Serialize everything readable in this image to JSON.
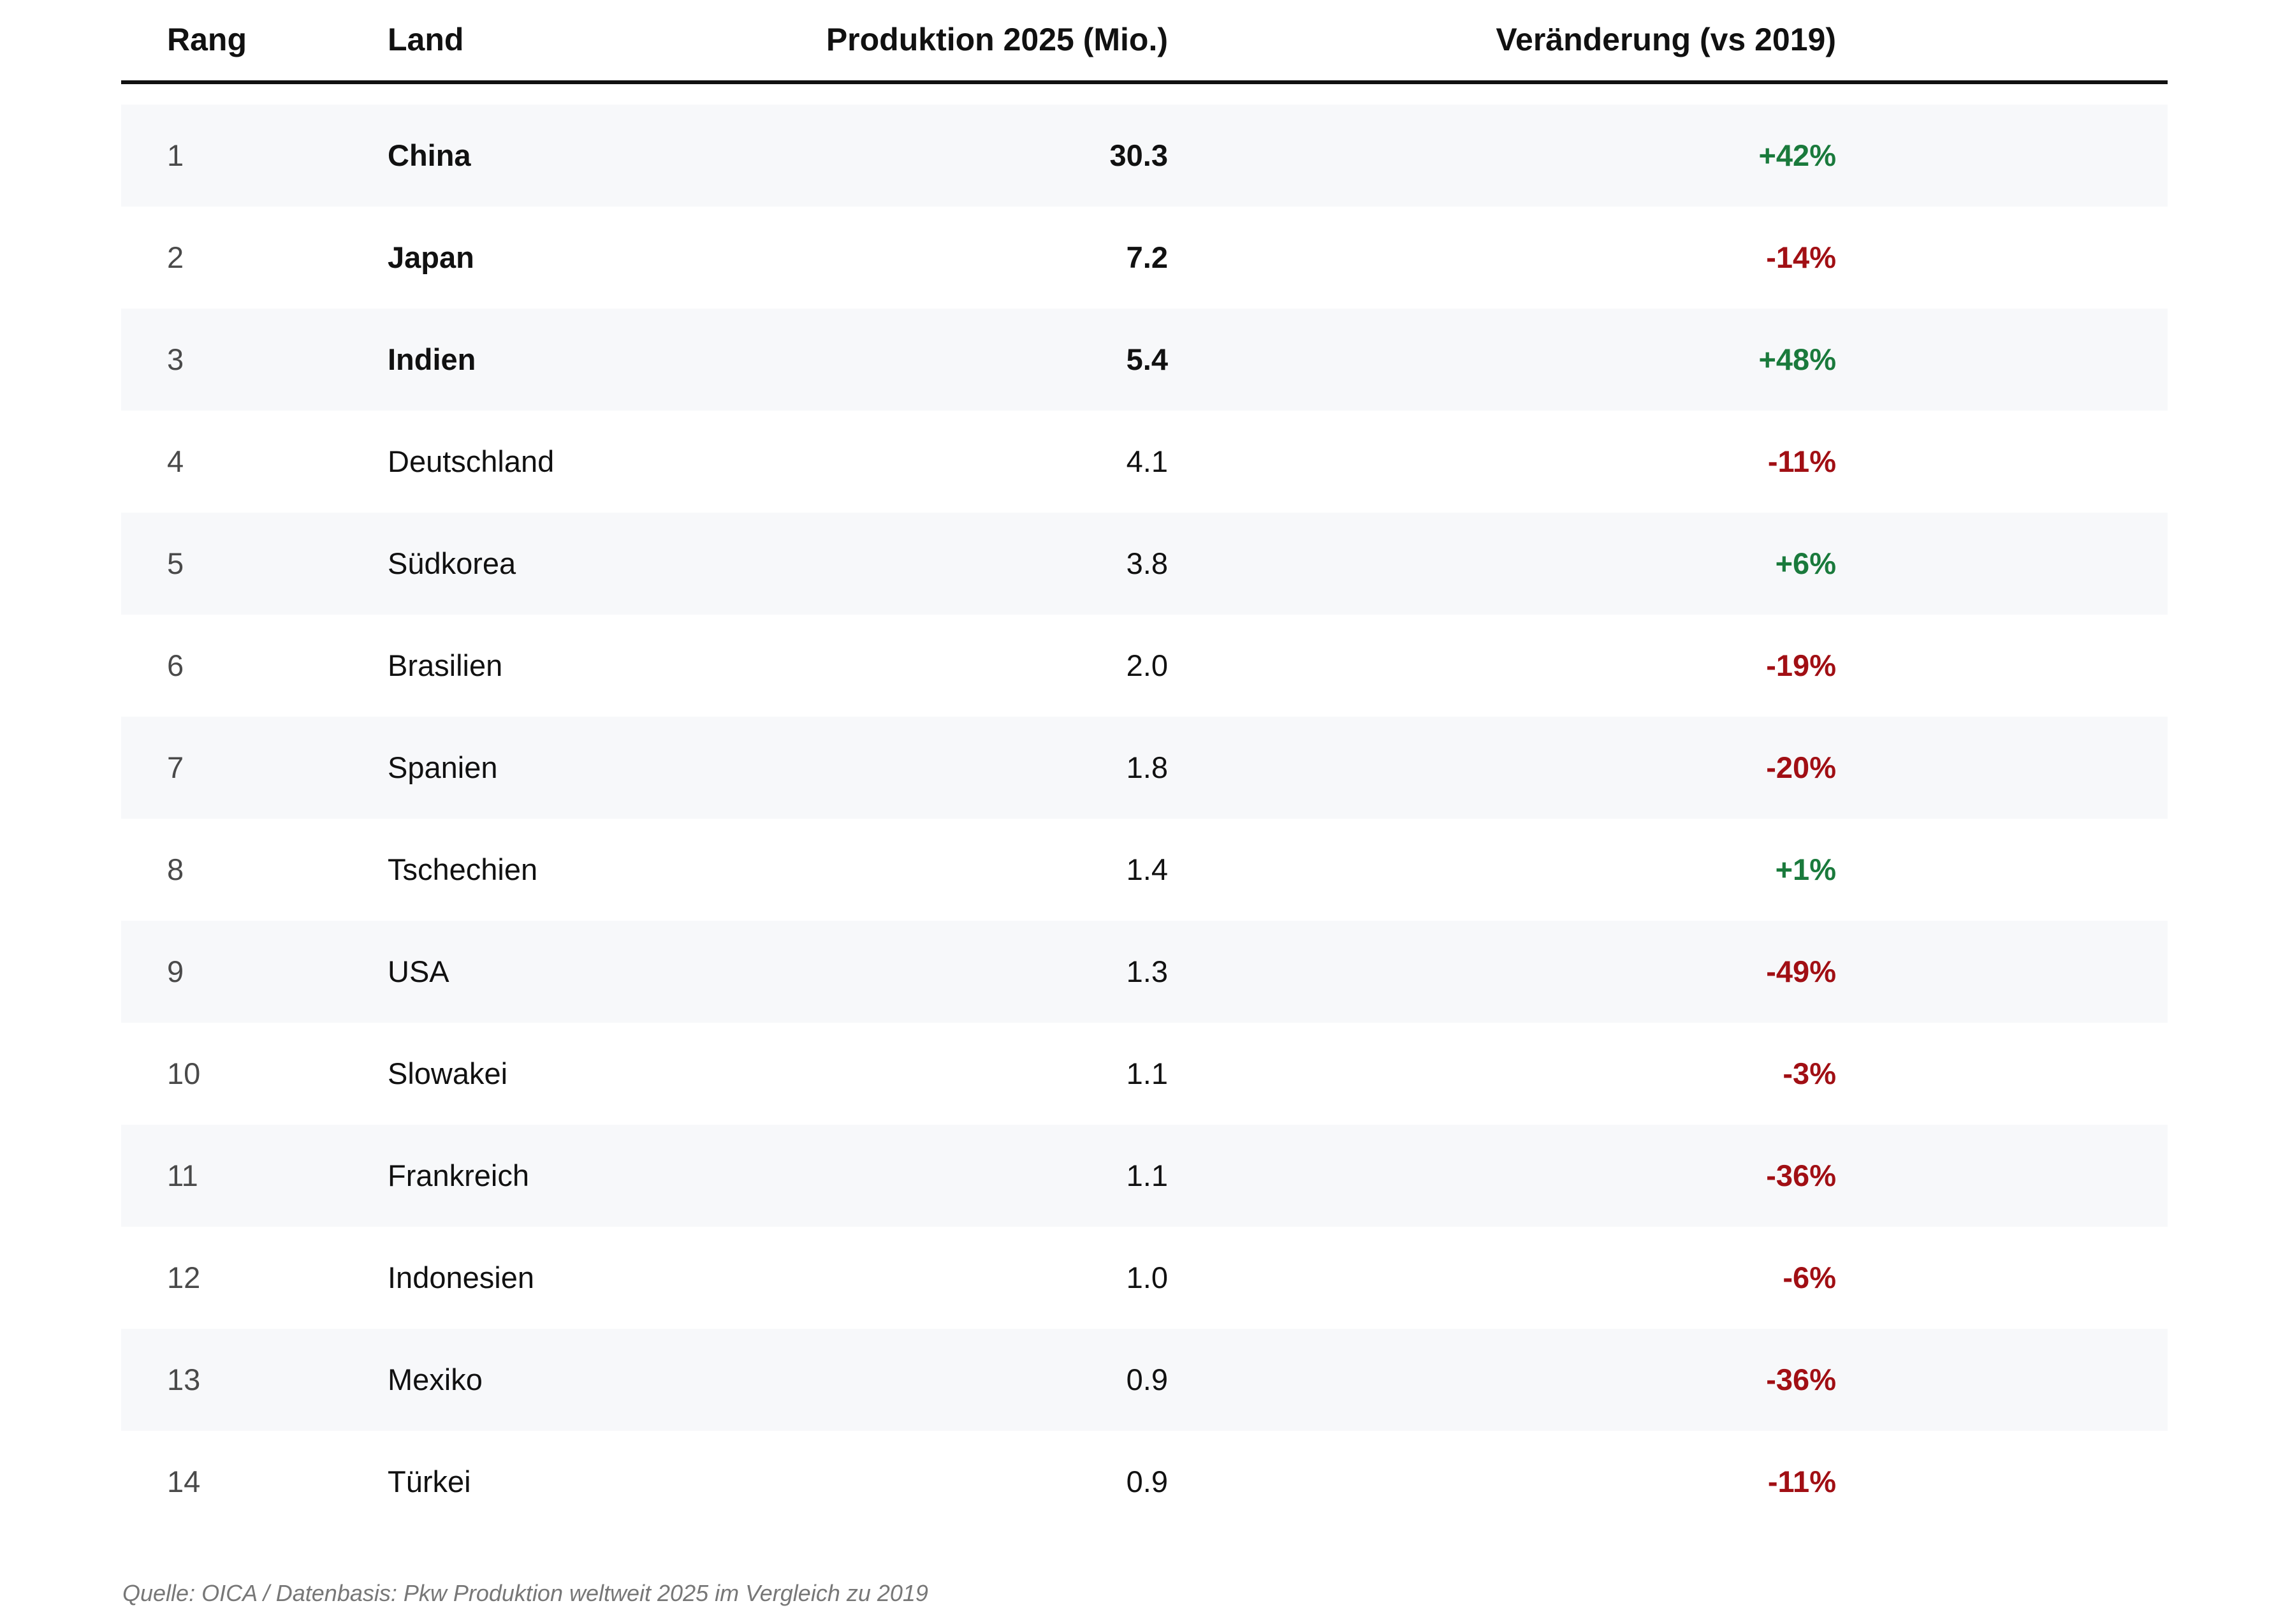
{
  "header": {
    "rank": "Rang",
    "country": "Land",
    "production": "Produktion 2025 (Mio.)",
    "change": "Veränderung (vs 2019)"
  },
  "rows": [
    {
      "rank": "1",
      "country": "China",
      "production": "30.3",
      "change": "+42%",
      "trend": "positive",
      "highlight": true
    },
    {
      "rank": "2",
      "country": "Japan",
      "production": "7.2",
      "change": "-14%",
      "trend": "negative",
      "highlight": true
    },
    {
      "rank": "3",
      "country": "Indien",
      "production": "5.4",
      "change": "+48%",
      "trend": "positive",
      "highlight": true
    },
    {
      "rank": "4",
      "country": "Deutschland",
      "production": "4.1",
      "change": "-11%",
      "trend": "negative",
      "highlight": false
    },
    {
      "rank": "5",
      "country": "Südkorea",
      "production": "3.8",
      "change": "+6%",
      "trend": "positive",
      "highlight": false
    },
    {
      "rank": "6",
      "country": "Brasilien",
      "production": "2.0",
      "change": "-19%",
      "trend": "negative",
      "highlight": false
    },
    {
      "rank": "7",
      "country": "Spanien",
      "production": "1.8",
      "change": "-20%",
      "trend": "negative",
      "highlight": false
    },
    {
      "rank": "8",
      "country": "Tschechien",
      "production": "1.4",
      "change": "+1%",
      "trend": "positive",
      "highlight": false
    },
    {
      "rank": "9",
      "country": "USA",
      "production": "1.3",
      "change": "-49%",
      "trend": "negative",
      "highlight": false
    },
    {
      "rank": "10",
      "country": "Slowakei",
      "production": "1.1",
      "change": "-3%",
      "trend": "negative",
      "highlight": false
    },
    {
      "rank": "11",
      "country": "Frankreich",
      "production": "1.1",
      "change": "-36%",
      "trend": "negative",
      "highlight": false
    },
    {
      "rank": "12",
      "country": "Indonesien",
      "production": "1.0",
      "change": "-6%",
      "trend": "negative",
      "highlight": false
    },
    {
      "rank": "13",
      "country": "Mexiko",
      "production": "0.9",
      "change": "-36%",
      "trend": "negative",
      "highlight": false
    },
    {
      "rank": "14",
      "country": "Türkei",
      "production": "0.9",
      "change": "-11%",
      "trend": "negative",
      "highlight": false
    }
  ],
  "colors": {
    "positive": "#1a7a3c",
    "negative": "#a10f14",
    "row_shade": "#f7f8fa"
  },
  "source": "Quelle: OICA / Datenbasis: Pkw Produktion weltweit 2025 im Vergleich zu 2019"
}
